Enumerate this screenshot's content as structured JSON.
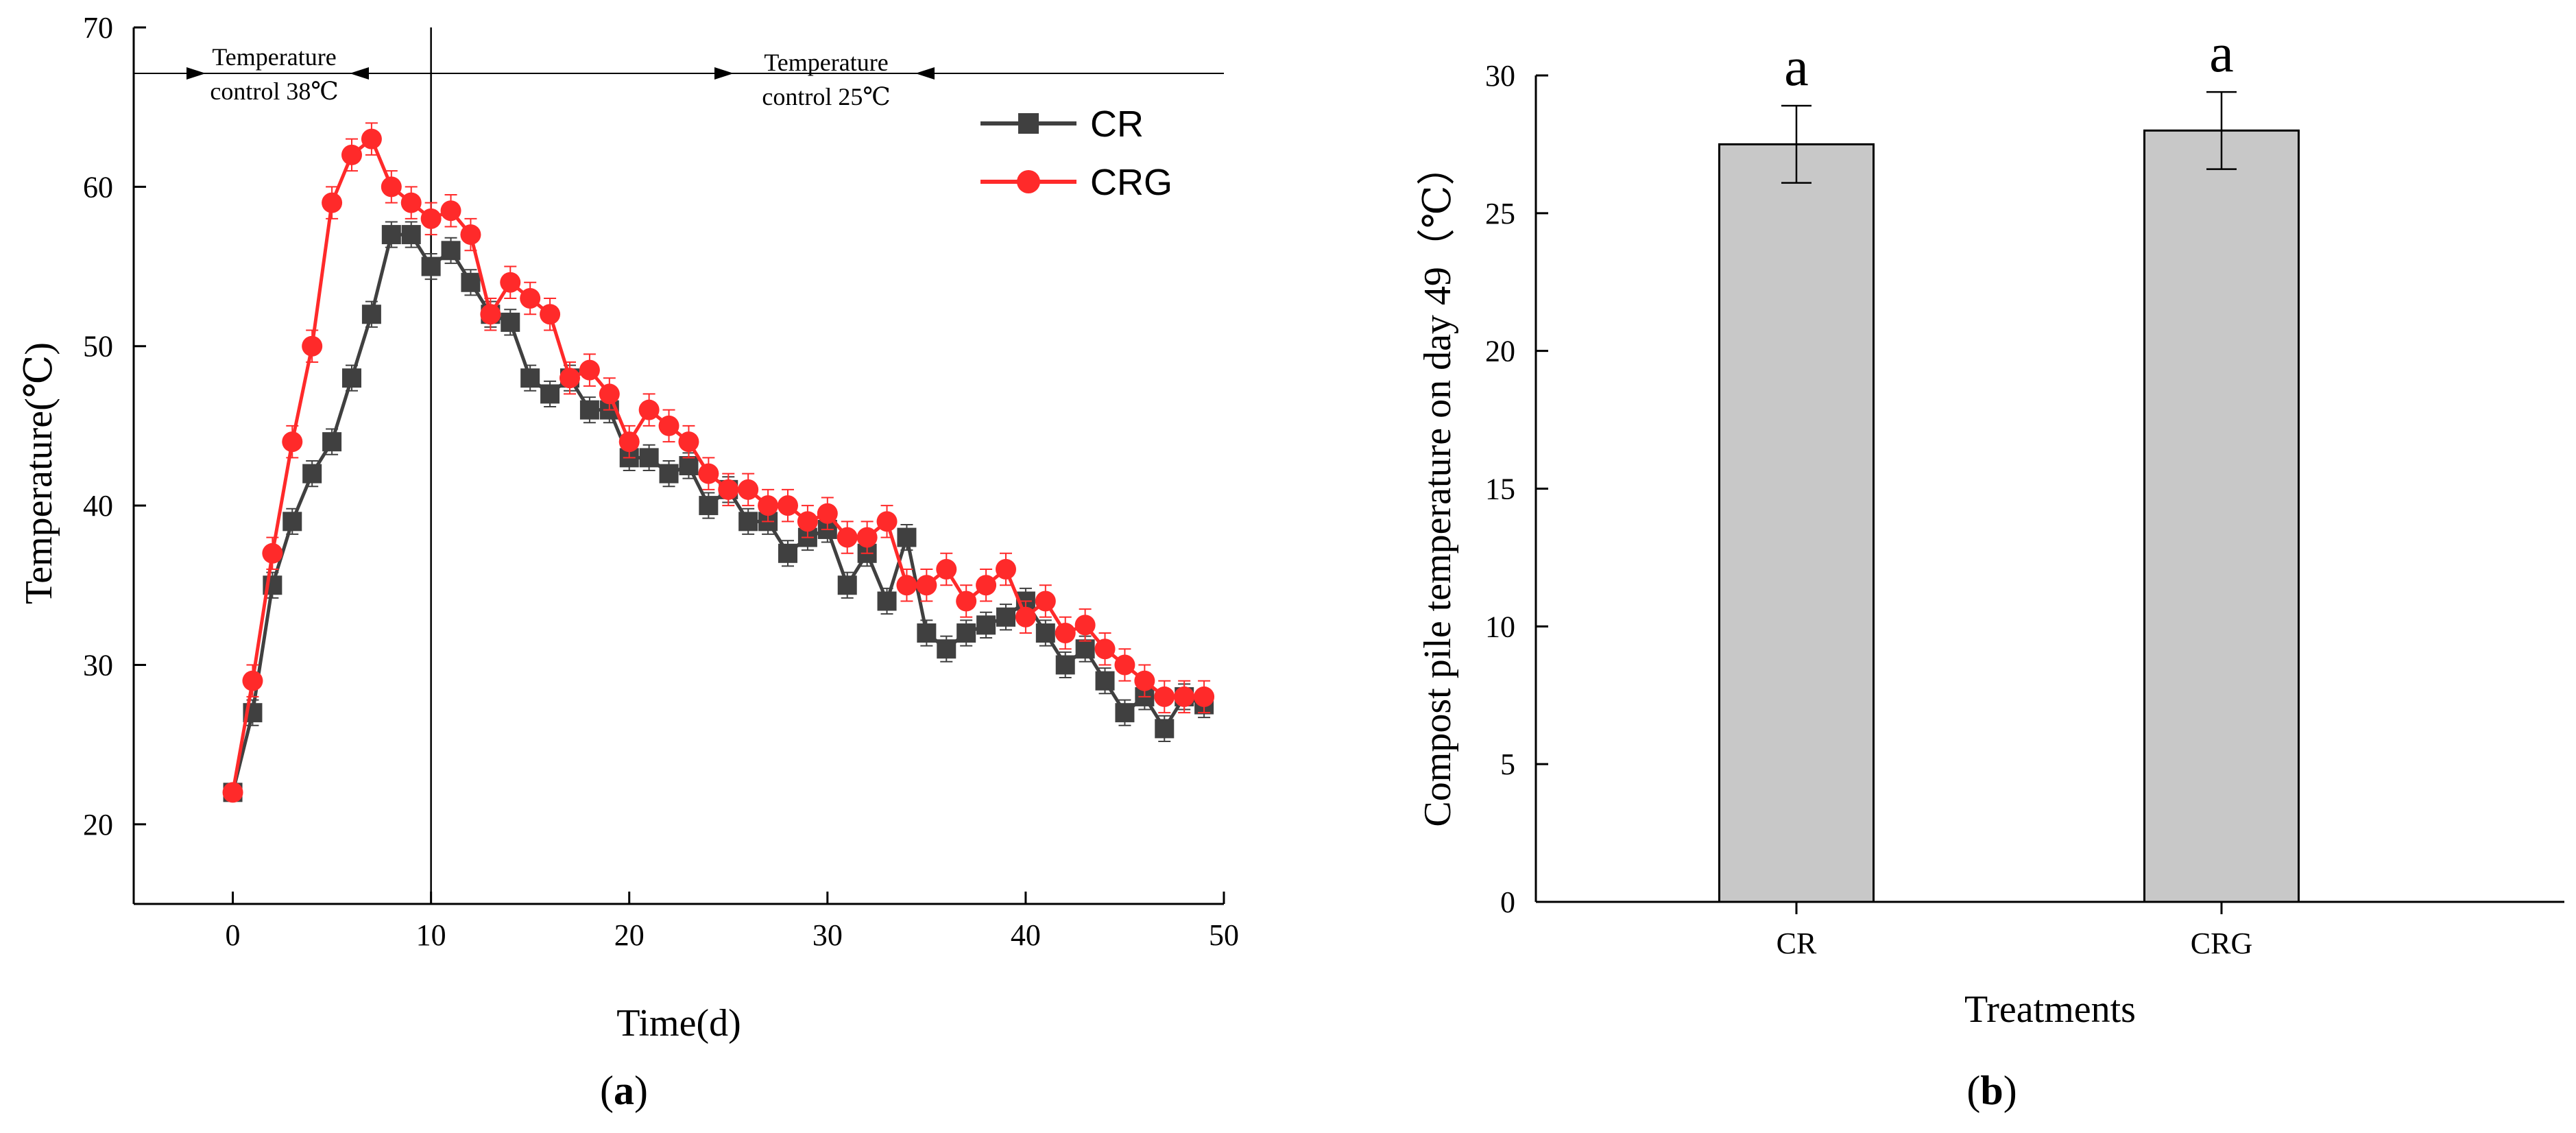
{
  "chart_data": [
    {
      "type": "line",
      "panel": "a",
      "xlabel": "Time(d)",
      "ylabel": "Temperature(℃)",
      "xlim": [
        -5,
        50
      ],
      "ylim": [
        15,
        70
      ],
      "xticks": [
        0,
        10,
        20,
        30,
        40,
        50
      ],
      "yticks": [
        20,
        30,
        40,
        50,
        60,
        70
      ],
      "grid": false,
      "legend": "top-right",
      "x": [
        0,
        1,
        2,
        3,
        4,
        5,
        6,
        7,
        8,
        9,
        10,
        11,
        12,
        13,
        14,
        15,
        16,
        17,
        18,
        19,
        20,
        21,
        22,
        23,
        24,
        25,
        26,
        27,
        28,
        29,
        30,
        31,
        32,
        33,
        34,
        35,
        36,
        37,
        38,
        39,
        40,
        41,
        42,
        43,
        44,
        45,
        46,
        47,
        48,
        49
      ],
      "series": [
        {
          "name": "CR",
          "marker": "square",
          "color": "#404040",
          "values": [
            22,
            27,
            35,
            39,
            42,
            44,
            48,
            52,
            57,
            57,
            55,
            56,
            54,
            52,
            51.5,
            48,
            47,
            48,
            46,
            46,
            43,
            43,
            42,
            42.5,
            40,
            41,
            39,
            39,
            37,
            38,
            38.5,
            35,
            37,
            34,
            38,
            32,
            31,
            32,
            32.5,
            33,
            34,
            32,
            30,
            31,
            29,
            27,
            28,
            26,
            28,
            27.5
          ],
          "errors": [
            0.5,
            0.8,
            0.8,
            0.8,
            0.8,
            0.8,
            0.8,
            0.8,
            0.8,
            0.8,
            0.8,
            0.8,
            0.8,
            0.8,
            0.8,
            0.8,
            0.8,
            0.8,
            0.8,
            0.8,
            0.8,
            0.8,
            0.8,
            0.8,
            0.8,
            0.8,
            0.8,
            0.8,
            0.8,
            0.8,
            0.8,
            0.8,
            0.8,
            0.8,
            0.8,
            0.8,
            0.8,
            0.8,
            0.8,
            0.8,
            0.8,
            0.8,
            0.8,
            0.8,
            0.8,
            0.8,
            0.8,
            0.8,
            0.8,
            0.8
          ]
        },
        {
          "name": "CRG",
          "marker": "circle",
          "color": "#ff2a2a",
          "values": [
            22,
            29,
            37,
            44,
            50,
            59,
            62,
            63,
            60,
            59,
            58,
            58.5,
            57,
            52,
            54,
            53,
            52,
            48,
            48.5,
            47,
            44,
            46,
            45,
            44,
            42,
            41,
            41,
            40,
            40,
            39,
            39.5,
            38,
            38,
            39,
            35,
            35,
            36,
            34,
            35,
            36,
            33,
            34,
            32,
            32.5,
            31,
            30,
            29,
            28,
            28,
            28
          ],
          "errors": [
            0.5,
            1.0,
            1.0,
            1.0,
            1.0,
            1.0,
            1.0,
            1.0,
            1.0,
            1.0,
            1.0,
            1.0,
            1.0,
            1.0,
            1.0,
            1.0,
            1.0,
            1.0,
            1.0,
            1.0,
            1.0,
            1.0,
            1.0,
            1.0,
            1.0,
            1.0,
            1.0,
            1.0,
            1.0,
            1.0,
            1.0,
            1.0,
            1.0,
            1.0,
            1.0,
            1.0,
            1.0,
            1.0,
            1.0,
            1.0,
            1.0,
            1.0,
            1.0,
            1.0,
            1.0,
            1.0,
            1.0,
            1.0,
            1.0,
            1.0
          ]
        }
      ],
      "annotations": [
        {
          "lines": [
            "Temperature",
            "control 38℃"
          ]
        },
        {
          "lines": [
            "Temperature",
            "control 25℃"
          ]
        }
      ],
      "divider_x": 10
    },
    {
      "type": "bar",
      "panel": "b",
      "xlabel": "Treatments",
      "ylabel": "Compost pile temperature on day 49（℃）",
      "ylim": [
        0,
        30
      ],
      "yticks": [
        0,
        5,
        10,
        15,
        20,
        25,
        30
      ],
      "categories": [
        "CR",
        "CRG"
      ],
      "values": [
        27.5,
        28
      ],
      "errors": [
        1.4,
        1.4
      ],
      "significance": [
        "a",
        "a"
      ],
      "bar_color": "#c8c8c8"
    }
  ],
  "panel_labels": {
    "a": {
      "open": "(",
      "letter": "a",
      "close": ")"
    },
    "b": {
      "open": "(",
      "letter": "b",
      "close": ")"
    }
  }
}
